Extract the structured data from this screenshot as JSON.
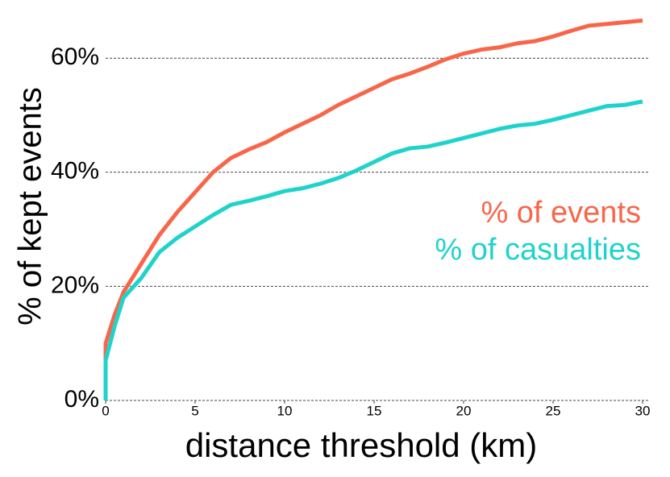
{
  "chart_data": {
    "type": "line",
    "xlabel": "distance threshold (km)",
    "ylabel": "% of kept events",
    "x": [
      0,
      0,
      0.5,
      1,
      2,
      3,
      4,
      5,
      6,
      7,
      8,
      9,
      10,
      11,
      12,
      13,
      14,
      15,
      16,
      17,
      18,
      19,
      20,
      21,
      22,
      23,
      24,
      25,
      26,
      27,
      28,
      29,
      30
    ],
    "series": [
      {
        "name": "% of events",
        "color": "#f8664a",
        "values": [
          0,
          10,
          15,
          19,
          24,
          29,
          33,
          36.5,
          40,
          42.5,
          44,
          45.3,
          47,
          48.5,
          50,
          51.8,
          53.3,
          54.8,
          56.3,
          57.3,
          58.5,
          59.8,
          60.8,
          61.5,
          61.9,
          62.6,
          63,
          63.8,
          64.8,
          65.7,
          66,
          66.3,
          66.6
        ]
      },
      {
        "name": "% of casualties",
        "color": "#1fd3cb",
        "values": [
          0,
          7,
          13,
          18,
          21.5,
          26,
          28.5,
          30.5,
          32.5,
          34.3,
          35,
          35.8,
          36.7,
          37.2,
          38,
          39,
          40.3,
          41.8,
          43.3,
          44.2,
          44.5,
          45.2,
          46,
          46.8,
          47.6,
          48.2,
          48.5,
          49.2,
          50,
          50.8,
          51.6,
          51.8,
          52.4
        ]
      }
    ],
    "xlim": [
      0,
      30
    ],
    "xticks": [
      0,
      5,
      10,
      15,
      20,
      25,
      30
    ],
    "ylim": [
      0,
      68
    ],
    "yticks": [
      {
        "value": 0,
        "label": "0%"
      },
      {
        "value": 20,
        "label": "20%"
      },
      {
        "value": 40,
        "label": "40%"
      },
      {
        "value": 60,
        "label": "60%"
      }
    ],
    "grid": true
  }
}
